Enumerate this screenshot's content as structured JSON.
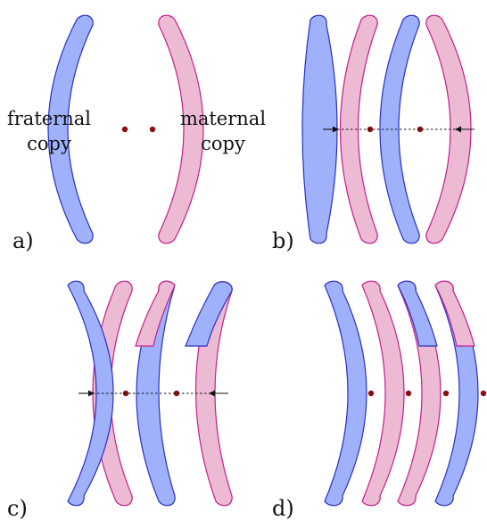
{
  "labels": {
    "fraternal_1": "fraternal",
    "fraternal_2": "copy",
    "maternal_1": "maternal",
    "maternal_2": "copy"
  },
  "panels": {
    "a": "a)",
    "b": "b)",
    "c": "c)",
    "d": "d)"
  },
  "colors": {
    "blue_fill": "#9fb1fb",
    "blue_stroke": "#2b2fc2",
    "pink_fill": "#ecbad3",
    "pink_stroke": "#c41e8f",
    "centromere": "#8b0f0f"
  }
}
